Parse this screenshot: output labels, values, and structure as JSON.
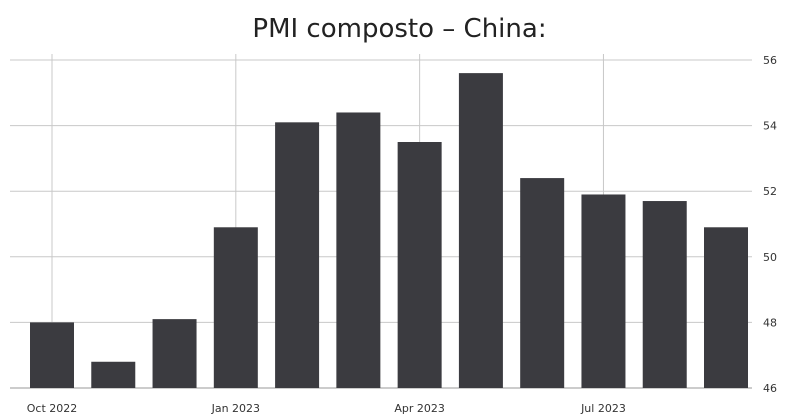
{
  "title": "PMI composto – China:",
  "chart_data": {
    "type": "bar",
    "title": "PMI composto – China:",
    "categories": [
      "Oct 2022",
      "Nov 2022",
      "Dec 2022",
      "Jan 2023",
      "Feb 2023",
      "Mar 2023",
      "Apr 2023",
      "May 2023",
      "Jun 2023",
      "Jul 2023",
      "Aug 2023",
      "Sep 2023"
    ],
    "values": [
      48.0,
      46.8,
      48.1,
      50.9,
      54.1,
      54.4,
      53.5,
      55.6,
      52.4,
      51.9,
      51.7,
      50.9
    ],
    "x_tick_labels": [
      "Oct 2022",
      "Jan 2023",
      "Apr 2023",
      "Jul 2023"
    ],
    "y_ticks": [
      46,
      48,
      50,
      52,
      54,
      56
    ],
    "ylim": [
      46,
      56
    ],
    "y_axis_side": "right",
    "grid": true,
    "bar_color": "#3b3b40"
  }
}
